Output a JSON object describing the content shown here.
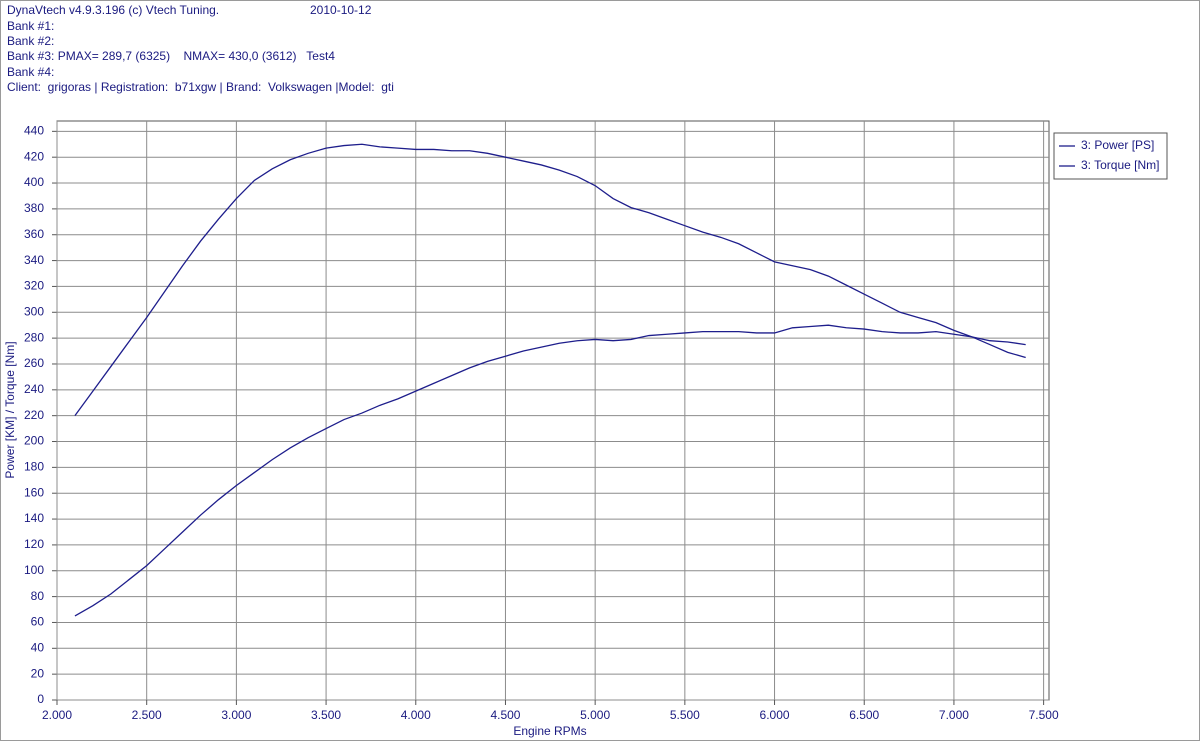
{
  "header": {
    "title": "DynaVtech v4.9.3.196 (c) Vtech Tuning.",
    "date": "2010-10-12",
    "lines": [
      "Bank #1:",
      "Bank #2:",
      "Bank #3: PMAX= 289,7 (6325)    NMAX= 430,0 (3612)   Test4",
      "Bank #4:",
      "Client:  grigoras | Registration:  b71xgw | Brand:  Volkswagen |Model:  gti"
    ]
  },
  "chart_data": {
    "type": "line",
    "x_label": "Engine RPMs",
    "y_label": "Power [KM] / Torque [Nm]",
    "x": [
      2100,
      2200,
      2300,
      2400,
      2500,
      2600,
      2700,
      2800,
      2900,
      3000,
      3100,
      3200,
      3300,
      3400,
      3500,
      3600,
      3700,
      3800,
      3900,
      4000,
      4100,
      4200,
      4300,
      4400,
      4500,
      4600,
      4700,
      4800,
      4900,
      5000,
      5100,
      5200,
      5300,
      5400,
      5500,
      5600,
      5700,
      5800,
      5900,
      6000,
      6100,
      6200,
      6300,
      6400,
      6500,
      6600,
      6700,
      6800,
      6900,
      7000,
      7100,
      7200,
      7300,
      7400
    ],
    "series": [
      {
        "name": "3: Power [PS]",
        "color": "#1e1e8c",
        "values": [
          65,
          73,
          82,
          93,
          104,
          117,
          130,
          143,
          155,
          166,
          176,
          186,
          195,
          203,
          210,
          217,
          222,
          228,
          233,
          239,
          245,
          251,
          257,
          262,
          266,
          270,
          273,
          276,
          278,
          279,
          278,
          279,
          282,
          283,
          284,
          285,
          285,
          285,
          284,
          284,
          288,
          289,
          290,
          288,
          287,
          285,
          284,
          284,
          285,
          283,
          281,
          278,
          277,
          275
        ]
      },
      {
        "name": "3: Torque [Nm]",
        "color": "#1e1e8c",
        "values": [
          220,
          239,
          258,
          277,
          296,
          316,
          336,
          355,
          372,
          388,
          402,
          411,
          418,
          423,
          427,
          429,
          430,
          428,
          427,
          426,
          426,
          425,
          425,
          423,
          420,
          417,
          414,
          410,
          405,
          398,
          388,
          381,
          377,
          372,
          367,
          362,
          358,
          353,
          346,
          339,
          336,
          333,
          328,
          321,
          314,
          307,
          300,
          296,
          292,
          286,
          281,
          275,
          269,
          265
        ]
      }
    ],
    "xlim": [
      2000,
      7530
    ],
    "ylim": [
      0,
      448
    ],
    "xticks": [
      {
        "value": 2000,
        "label": "2.000"
      },
      {
        "value": 2500,
        "label": "2.500"
      },
      {
        "value": 3000,
        "label": "3.000"
      },
      {
        "value": 3500,
        "label": "3.500"
      },
      {
        "value": 4000,
        "label": "4.000"
      },
      {
        "value": 4500,
        "label": "4.500"
      },
      {
        "value": 5000,
        "label": "5.000"
      },
      {
        "value": 5500,
        "label": "5.500"
      },
      {
        "value": 6000,
        "label": "6.000"
      },
      {
        "value": 6500,
        "label": "6.500"
      },
      {
        "value": 7000,
        "label": "7.000"
      },
      {
        "value": 7500,
        "label": "7.500"
      }
    ],
    "yticks": [
      0,
      20,
      40,
      60,
      80,
      100,
      120,
      140,
      160,
      180,
      200,
      220,
      240,
      260,
      280,
      300,
      320,
      340,
      360,
      380,
      400,
      420,
      440
    ],
    "grid": true
  }
}
